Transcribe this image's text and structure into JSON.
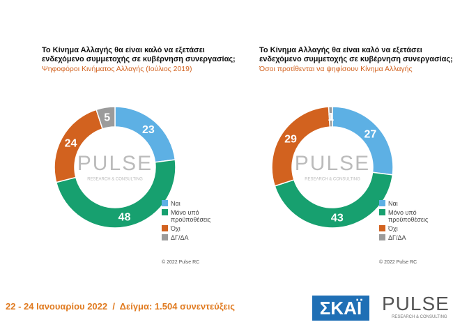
{
  "chart_data": [
    {
      "type": "donut",
      "title": [
        "Το Κίνημα Αλλαγής θα είναι καλό να εξετάσει",
        "ενδεχόμενο συμμετοχής σε κυβέρνηση συνεργασίας;"
      ],
      "subtitle": "Ψηφοφόροι Κινήματος Αλλαγής (Ιούλιος 2019)",
      "categories": [
        "Ναι",
        "Μόνο υπό προϋποθέσεις",
        "Όχι",
        "ΔΓ/ΔΑ"
      ],
      "values": [
        23,
        48,
        24,
        5
      ],
      "colors": [
        "#5db0e4",
        "#17a06f",
        "#d2621f",
        "#9b9b9b"
      ],
      "watermark": [
        "PULSE",
        "RESEARCH & CONSULTING"
      ],
      "credit": "© 2022 Pulse RC"
    },
    {
      "type": "donut",
      "title": [
        "Το Κίνημα Αλλαγής θα είναι καλό να εξετάσει",
        "ενδεχόμενο συμμετοχής σε κυβέρνηση συνεργασίας;"
      ],
      "subtitle": "Όσοι προτίθενται να ψηφίσουν Κίνημα Αλλαγής",
      "categories": [
        "Ναι",
        "Μόνο υπό προϋποθέσεις",
        "Όχι",
        "ΔΓ/ΔΑ"
      ],
      "values": [
        27,
        43,
        29,
        1
      ],
      "colors": [
        "#5db0e4",
        "#17a06f",
        "#d2621f",
        "#9b9b9b"
      ],
      "watermark": [
        "PULSE",
        "RESEARCH & CONSULTING"
      ],
      "credit": "© 2022 Pulse RC"
    }
  ],
  "footer": {
    "text": "22 - 24 Ιανουαρίου 2022  /  Δείγμα: 1.504 συνεντεύξεις",
    "logo1": "ΣΚΑΪ",
    "logo2": "PULSE",
    "logo2_sub": "RESEARCH & CONSULTING"
  }
}
